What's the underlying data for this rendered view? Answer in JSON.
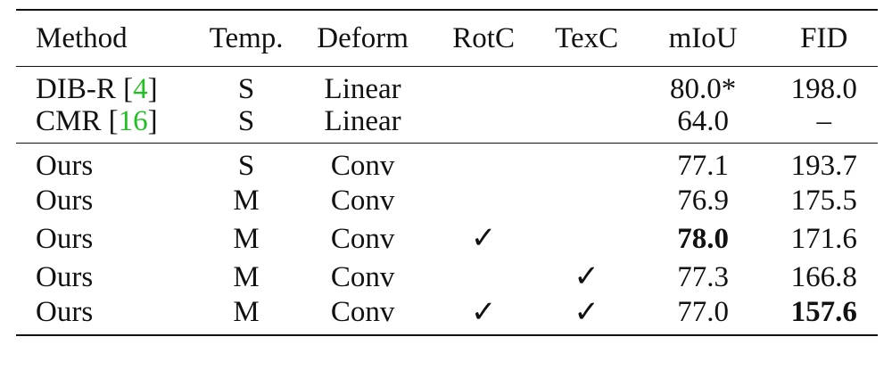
{
  "table": {
    "headers": {
      "method": "Method",
      "temp": "Temp.",
      "deform": "Deform",
      "rotc": "RotC",
      "texc": "TexC",
      "miou": "mIoU",
      "fid": "FID"
    },
    "baselines": [
      {
        "method": "DIB-R [",
        "cite": "4",
        "close": "]",
        "temp": "S",
        "deform": "Linear",
        "rotc": "",
        "texc": "",
        "miou": "80.0*",
        "fid": "198.0"
      },
      {
        "method": "CMR [",
        "cite": "16",
        "close": "]",
        "temp": "S",
        "deform": "Linear",
        "rotc": "",
        "texc": "",
        "miou": "64.0",
        "fid": "–"
      }
    ],
    "ours": [
      {
        "method": "Ours",
        "temp": "S",
        "deform": "Conv",
        "rotc": "",
        "texc": "",
        "miou": "77.1",
        "fid": "193.7"
      },
      {
        "method": "Ours",
        "temp": "M",
        "deform": "Conv",
        "rotc": "",
        "texc": "",
        "miou": "76.9",
        "fid": "175.5"
      },
      {
        "method": "Ours",
        "temp": "M",
        "deform": "Conv",
        "rotc": "✓",
        "texc": "",
        "miou": "78.0",
        "fid": "171.6"
      },
      {
        "method": "Ours",
        "temp": "M",
        "deform": "Conv",
        "rotc": "",
        "texc": "✓",
        "miou": "77.3",
        "fid": "166.8"
      },
      {
        "method": "Ours",
        "temp": "M",
        "deform": "Conv",
        "rotc": "✓",
        "texc": "✓",
        "miou": "77.0",
        "fid": "157.6"
      }
    ],
    "colors": {
      "text": "#111111",
      "citation": "#22c022"
    }
  }
}
